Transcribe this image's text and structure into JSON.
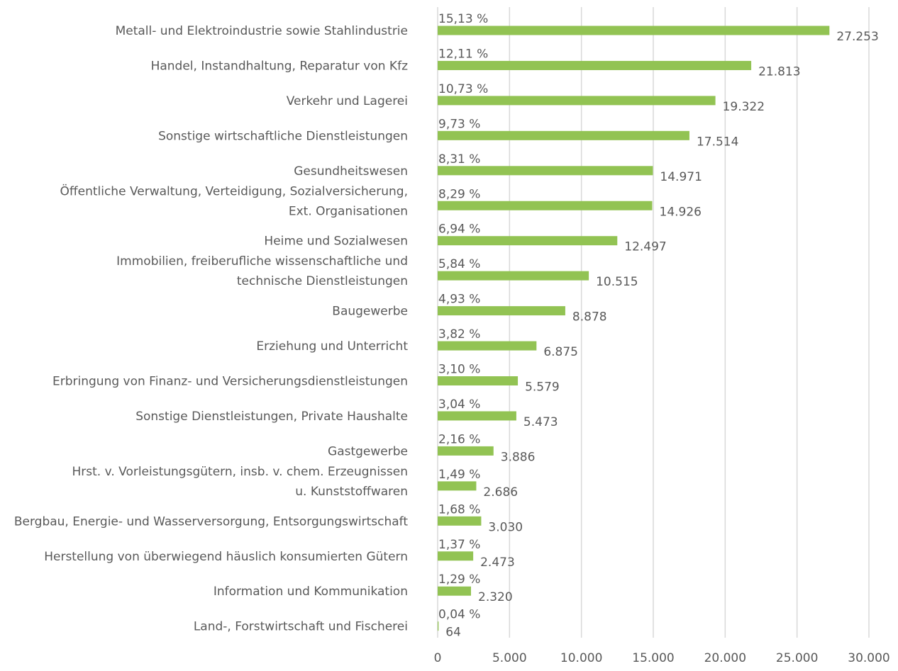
{
  "chart_data": {
    "type": "hbar",
    "categories": [
      "Metall- und Elektroindustrie sowie Stahlindustrie",
      "Handel, Instandhaltung, Reparatur von Kfz",
      "Verkehr und Lagerei",
      "Sonstige wirtschaftliche Dienstleistungen",
      "Gesundheitswesen",
      "Öffentliche Verwaltung, Verteidigung, Sozialversicherung,\nExt. Organisationen",
      "Heime und Sozialwesen",
      "Immobilien, freiberufliche wissenschaftliche und\ntechnische Dienstleistungen",
      "Baugewerbe",
      "Erziehung und Unterricht",
      "Erbringung von Finanz- und Versicherungsdienstleistungen",
      "Sonstige Dienstleistungen, Private Haushalte",
      "Gastgewerbe",
      "Hrst. v. Vorleistungsgütern, insb. v. chem. Erzeugnissen\nu. Kunststoffwaren",
      "Bergbau, Energie- und Wasserversorgung, Entsorgungswirtschaft",
      "Herstellung von überwiegend häuslich konsumierten Gütern",
      "Information und Kommunikation",
      "Land-, Forstwirtschaft und Fischerei"
    ],
    "values": [
      27253,
      21813,
      19322,
      17514,
      14971,
      14926,
      12497,
      10515,
      8878,
      6875,
      5579,
      5473,
      3886,
      2686,
      3030,
      2473,
      2320,
      64
    ],
    "value_labels": [
      "27.253",
      "21.813",
      "19.322",
      "17.514",
      "14.971",
      "14.926",
      "12.497",
      "10.515",
      "8.878",
      "6.875",
      "5.579",
      "5.473",
      "3.886",
      "2.686",
      "3.030",
      "2.473",
      "2.320",
      "64"
    ],
    "shares": [
      15.13,
      12.11,
      10.73,
      9.73,
      8.31,
      8.29,
      6.94,
      5.84,
      4.93,
      3.82,
      3.1,
      3.04,
      2.16,
      1.49,
      1.68,
      1.37,
      1.29,
      0.04
    ],
    "share_labels": [
      "15,13 %",
      "12,11 %",
      "10,73 %",
      "9,73 %",
      "8,31 %",
      "8,29 %",
      "6,94 %",
      "5,84 %",
      "4,93 %",
      "3,82 %",
      "3,10 %",
      "3,04 %",
      "2,16 %",
      "1,49 %",
      "1,68 %",
      "1,37 %",
      "1,29 %",
      "0,04 %"
    ],
    "color": "#92c353",
    "xlim": [
      0,
      30000
    ],
    "xticks": [
      0,
      {
        "value": 5000,
        "label": "5.000"
      },
      {
        "value": 10000,
        "label": "10.000"
      },
      {
        "value": 15000,
        "label": "15.000"
      },
      {
        "value": 20000,
        "label": "20.000"
      },
      {
        "value": 25000,
        "label": "25.000"
      },
      {
        "value": 30000,
        "label": "30.000"
      }
    ],
    "grid": true
  }
}
